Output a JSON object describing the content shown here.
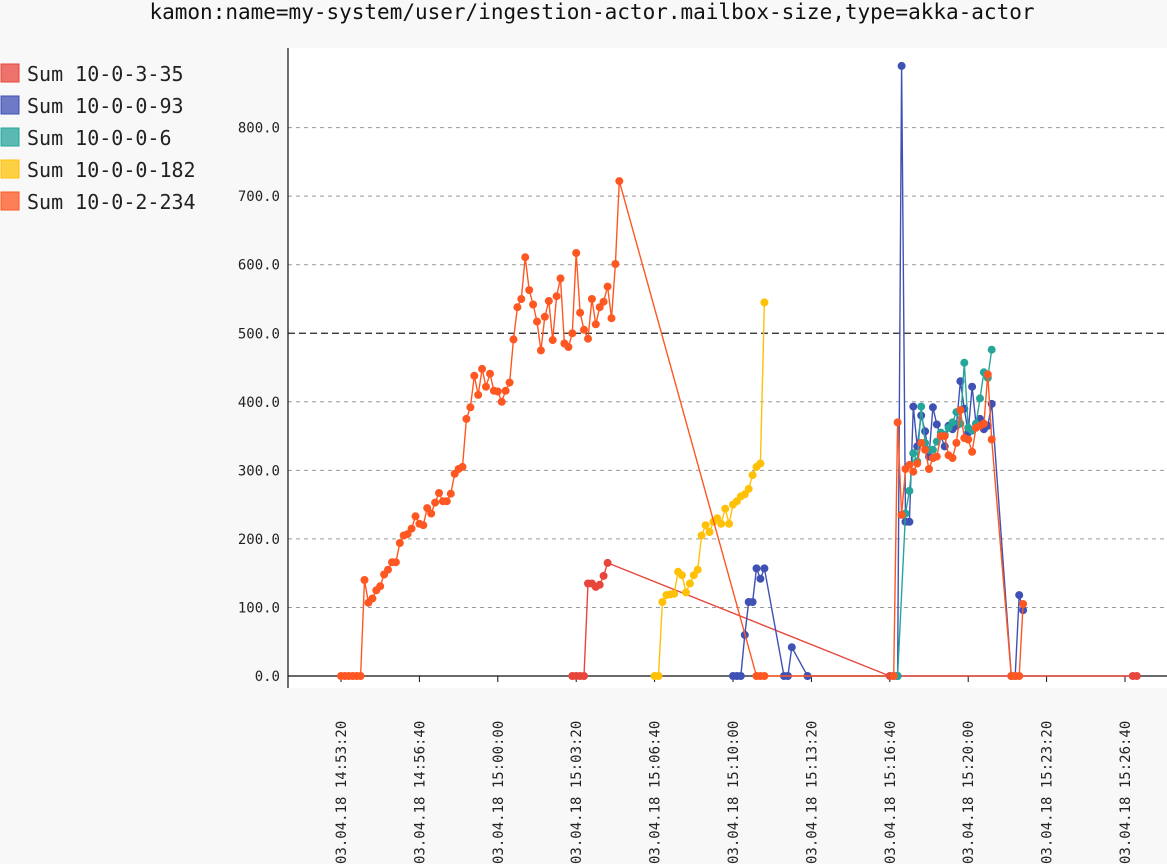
{
  "chart_data": {
    "type": "line",
    "title": "kamon:name=my-system/user/ingestion-actor.mailbox-size,type=akka-actor",
    "ylim": [
      0,
      900
    ],
    "y_ticks": [
      {
        "value": 0,
        "label": "0.0"
      },
      {
        "value": 100,
        "label": "100.0"
      },
      {
        "value": 200,
        "label": "200.0"
      },
      {
        "value": 300,
        "label": "300.0"
      },
      {
        "value": 400,
        "label": "400.0"
      },
      {
        "value": 500,
        "label": "500.0"
      },
      {
        "value": 600,
        "label": "600.0"
      },
      {
        "value": 700,
        "label": "700.0"
      },
      {
        "value": 800,
        "label": "800.0"
      }
    ],
    "x_axis": {
      "type": "time",
      "start": "14:53:20",
      "end": "15:26:40",
      "step_seconds": 200
    },
    "x_ticks": [
      {
        "time": "14:53:20",
        "label": "03.04.18 14:53:20"
      },
      {
        "time": "14:56:40",
        "label": "03.04.18 14:56:40"
      },
      {
        "time": "15:00:00",
        "label": "03.04.18 15:00:00"
      },
      {
        "time": "15:03:20",
        "label": "03.04.18 15:03:20"
      },
      {
        "time": "15:06:40",
        "label": "03.04.18 15:06:40"
      },
      {
        "time": "15:10:00",
        "label": "03.04.18 15:10:00"
      },
      {
        "time": "15:13:20",
        "label": "03.04.18 15:13:20"
      },
      {
        "time": "15:16:40",
        "label": "03.04.18 15:16:40"
      },
      {
        "time": "15:20:00",
        "label": "03.04.18 15:20:00"
      },
      {
        "time": "15:23:20",
        "label": "03.04.18 15:23:20"
      },
      {
        "time": "15:26:40",
        "label": "03.04.18 15:26:40"
      }
    ],
    "grid": true,
    "legend_position": "top-left",
    "series": [
      {
        "name": "Sum 10-0-3-35",
        "color": "#e8453c",
        "points": [
          [
            "15:03:10",
            0
          ],
          [
            "15:03:20",
            0
          ],
          [
            "15:03:30",
            0
          ],
          [
            "15:03:40",
            0
          ],
          [
            "15:03:50",
            135
          ],
          [
            "15:04:00",
            135
          ],
          [
            "15:04:10",
            130
          ],
          [
            "15:04:20",
            133
          ],
          [
            "15:04:30",
            146
          ],
          [
            "15:04:40",
            165
          ],
          [
            "15:16:40",
            0
          ],
          [
            "15:16:50",
            0
          ],
          [
            "15:27:00",
            0
          ],
          [
            "15:27:10",
            0
          ]
        ]
      },
      {
        "name": "Sum 10-0-0-93",
        "color": "#3f51b5",
        "points": [
          [
            "15:10:00",
            0
          ],
          [
            "15:10:10",
            0
          ],
          [
            "15:10:20",
            0
          ],
          [
            "15:10:30",
            60
          ],
          [
            "15:10:40",
            108
          ],
          [
            "15:10:50",
            108
          ],
          [
            "15:11:00",
            157
          ],
          [
            "15:11:10",
            142
          ],
          [
            "15:11:20",
            157
          ],
          [
            "15:12:10",
            0
          ],
          [
            "15:12:20",
            0
          ],
          [
            "15:12:30",
            42
          ],
          [
            "15:13:10",
            0
          ],
          [
            "15:16:50",
            0
          ],
          [
            "15:17:00",
            0
          ],
          [
            "15:17:10",
            890
          ],
          [
            "15:17:20",
            225
          ],
          [
            "15:17:30",
            225
          ],
          [
            "15:17:40",
            393
          ],
          [
            "15:17:50",
            335
          ],
          [
            "15:18:00",
            380
          ],
          [
            "15:18:10",
            357
          ],
          [
            "15:18:20",
            320
          ],
          [
            "15:18:30",
            392
          ],
          [
            "15:18:40",
            367
          ],
          [
            "15:18:50",
            350
          ],
          [
            "15:19:00",
            335
          ],
          [
            "15:19:10",
            365
          ],
          [
            "15:19:20",
            360
          ],
          [
            "15:19:30",
            365
          ],
          [
            "15:19:40",
            430
          ],
          [
            "15:19:50",
            390
          ],
          [
            "15:20:00",
            355
          ],
          [
            "15:20:10",
            422
          ],
          [
            "15:20:20",
            368
          ],
          [
            "15:20:30",
            375
          ],
          [
            "15:20:40",
            360
          ],
          [
            "15:20:50",
            365
          ],
          [
            "15:21:00",
            397
          ],
          [
            "15:21:50",
            0
          ],
          [
            "15:22:00",
            0
          ],
          [
            "15:22:10",
            118
          ],
          [
            "15:22:20",
            96
          ]
        ]
      },
      {
        "name": "Sum 10-0-0-6",
        "color": "#26a69a",
        "points": [
          [
            "15:16:50",
            0
          ],
          [
            "15:17:00",
            0
          ],
          [
            "15:17:20",
            237
          ],
          [
            "15:17:30",
            270
          ],
          [
            "15:17:40",
            325
          ],
          [
            "15:17:50",
            313
          ],
          [
            "15:18:00",
            393
          ],
          [
            "15:18:10",
            340
          ],
          [
            "15:18:20",
            330
          ],
          [
            "15:18:30",
            330
          ],
          [
            "15:18:40",
            342
          ],
          [
            "15:18:50",
            355
          ],
          [
            "15:19:00",
            352
          ],
          [
            "15:19:10",
            362
          ],
          [
            "15:19:20",
            370
          ],
          [
            "15:19:30",
            385
          ],
          [
            "15:19:40",
            368
          ],
          [
            "15:19:50",
            457
          ],
          [
            "15:20:00",
            362
          ],
          [
            "15:20:10",
            358
          ],
          [
            "15:20:20",
            368
          ],
          [
            "15:20:30",
            405
          ],
          [
            "15:20:40",
            443
          ],
          [
            "15:20:50",
            435
          ],
          [
            "15:21:00",
            476
          ]
        ]
      },
      {
        "name": "Sum 10-0-0-182",
        "color": "#ffc107",
        "points": [
          [
            "15:06:40",
            0
          ],
          [
            "15:06:50",
            0
          ],
          [
            "15:07:00",
            108
          ],
          [
            "15:07:10",
            118
          ],
          [
            "15:07:20",
            119
          ],
          [
            "15:07:30",
            120
          ],
          [
            "15:07:40",
            152
          ],
          [
            "15:07:50",
            147
          ],
          [
            "15:08:00",
            122
          ],
          [
            "15:08:10",
            135
          ],
          [
            "15:08:20",
            147
          ],
          [
            "15:08:30",
            155
          ],
          [
            "15:08:40",
            205
          ],
          [
            "15:08:50",
            220
          ],
          [
            "15:09:00",
            210
          ],
          [
            "15:09:10",
            225
          ],
          [
            "15:09:20",
            230
          ],
          [
            "15:09:30",
            222
          ],
          [
            "15:09:40",
            244
          ],
          [
            "15:09:50",
            222
          ],
          [
            "15:10:00",
            250
          ],
          [
            "15:10:10",
            255
          ],
          [
            "15:10:20",
            262
          ],
          [
            "15:10:30",
            265
          ],
          [
            "15:10:40",
            273
          ],
          [
            "15:10:50",
            293
          ],
          [
            "15:11:00",
            305
          ],
          [
            "15:11:10",
            310
          ],
          [
            "15:11:20",
            545
          ]
        ]
      },
      {
        "name": "Sum 10-0-2-234",
        "color": "#ff5722",
        "points": [
          [
            "14:53:20",
            0
          ],
          [
            "14:53:30",
            0
          ],
          [
            "14:53:40",
            0
          ],
          [
            "14:53:50",
            0
          ],
          [
            "14:54:00",
            0
          ],
          [
            "14:54:10",
            0
          ],
          [
            "14:54:20",
            140
          ],
          [
            "14:54:30",
            107
          ],
          [
            "14:54:40",
            113
          ],
          [
            "14:54:50",
            125
          ],
          [
            "14:55:00",
            131
          ],
          [
            "14:55:10",
            148
          ],
          [
            "14:55:20",
            155
          ],
          [
            "14:55:30",
            166
          ],
          [
            "14:55:40",
            166
          ],
          [
            "14:55:50",
            194
          ],
          [
            "14:56:00",
            205
          ],
          [
            "14:56:10",
            207
          ],
          [
            "14:56:20",
            215
          ],
          [
            "14:56:30",
            233
          ],
          [
            "14:56:40",
            222
          ],
          [
            "14:56:50",
            220
          ],
          [
            "14:57:00",
            245
          ],
          [
            "14:57:10",
            237
          ],
          [
            "14:57:20",
            253
          ],
          [
            "14:57:30",
            267
          ],
          [
            "14:57:40",
            255
          ],
          [
            "14:57:50",
            255
          ],
          [
            "14:58:00",
            266
          ],
          [
            "14:58:10",
            295
          ],
          [
            "14:58:20",
            302
          ],
          [
            "14:58:30",
            305
          ],
          [
            "14:58:40",
            375
          ],
          [
            "14:58:50",
            392
          ],
          [
            "14:59:00",
            438
          ],
          [
            "14:59:10",
            410
          ],
          [
            "14:59:20",
            448
          ],
          [
            "14:59:30",
            422
          ],
          [
            "14:59:40",
            441
          ],
          [
            "14:59:50",
            416
          ],
          [
            "15:00:00",
            415
          ],
          [
            "15:00:10",
            400
          ],
          [
            "15:00:20",
            416
          ],
          [
            "15:00:30",
            428
          ],
          [
            "15:00:40",
            491
          ],
          [
            "15:00:50",
            538
          ],
          [
            "15:01:00",
            550
          ],
          [
            "15:01:10",
            611
          ],
          [
            "15:01:20",
            563
          ],
          [
            "15:01:30",
            542
          ],
          [
            "15:01:40",
            517
          ],
          [
            "15:01:50",
            475
          ],
          [
            "15:02:00",
            524
          ],
          [
            "15:02:10",
            547
          ],
          [
            "15:02:20",
            490
          ],
          [
            "15:02:30",
            554
          ],
          [
            "15:02:40",
            580
          ],
          [
            "15:02:50",
            485
          ],
          [
            "15:03:00",
            480
          ],
          [
            "15:03:10",
            500
          ],
          [
            "15:03:20",
            617
          ],
          [
            "15:03:30",
            530
          ],
          [
            "15:03:40",
            505
          ],
          [
            "15:03:50",
            492
          ],
          [
            "15:04:00",
            550
          ],
          [
            "15:04:10",
            513
          ],
          [
            "15:04:20",
            538
          ],
          [
            "15:04:30",
            546
          ],
          [
            "15:04:40",
            568
          ],
          [
            "15:04:50",
            522
          ],
          [
            "15:05:00",
            601
          ],
          [
            "15:05:10",
            722
          ],
          [
            "15:11:00",
            0
          ],
          [
            "15:11:10",
            0
          ],
          [
            "15:11:20",
            0
          ],
          [
            "15:16:50",
            0
          ],
          [
            "15:17:00",
            370
          ],
          [
            "15:17:10",
            235
          ],
          [
            "15:17:20",
            302
          ],
          [
            "15:17:30",
            308
          ],
          [
            "15:17:40",
            298
          ],
          [
            "15:17:50",
            310
          ],
          [
            "15:18:00",
            340
          ],
          [
            "15:18:10",
            330
          ],
          [
            "15:18:20",
            302
          ],
          [
            "15:18:30",
            318
          ],
          [
            "15:18:40",
            320
          ],
          [
            "15:18:50",
            350
          ],
          [
            "15:19:00",
            350
          ],
          [
            "15:19:10",
            322
          ],
          [
            "15:19:20",
            318
          ],
          [
            "15:19:30",
            340
          ],
          [
            "15:19:40",
            388
          ],
          [
            "15:19:50",
            347
          ],
          [
            "15:20:00",
            345
          ],
          [
            "15:20:10",
            327
          ],
          [
            "15:20:20",
            362
          ],
          [
            "15:20:30",
            365
          ],
          [
            "15:20:40",
            368
          ],
          [
            "15:20:50",
            440
          ],
          [
            "15:21:00",
            345
          ],
          [
            "15:21:50",
            0
          ],
          [
            "15:22:00",
            0
          ],
          [
            "15:22:10",
            0
          ],
          [
            "15:22:20",
            105
          ]
        ]
      }
    ]
  }
}
